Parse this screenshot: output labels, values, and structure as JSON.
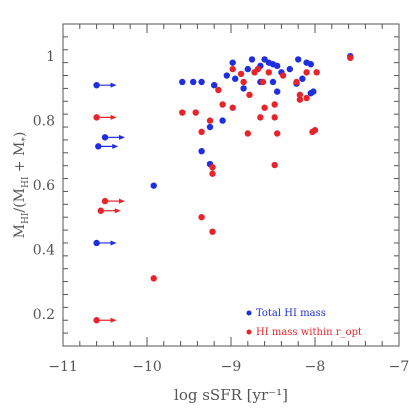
{
  "chart_data": {
    "type": "scatter",
    "title": "",
    "xlabel": "log sSFR [yr⁻¹]",
    "ylabel_main": "M",
    "ylabel_sub_hi": "HI",
    "ylabel_sub_star": "*",
    "xlim": [
      -11,
      -7
    ],
    "ylim": [
      0.1,
      1.1
    ],
    "x_ticks": [
      -11,
      -10,
      -9,
      -8,
      -7
    ],
    "x_tick_labels": [
      "−11",
      "−10",
      "−9",
      "−8",
      "−7"
    ],
    "y_ticks": [
      0.2,
      0.4,
      0.6,
      0.8,
      1.0
    ],
    "y_tick_labels": [
      "0.2",
      "0.4",
      "0.6",
      "0.8",
      "1"
    ],
    "grid": false,
    "legend_position": "bottom-right",
    "series": [
      {
        "name": "Total HI mass",
        "color": "#1f2fe0",
        "points": [
          [
            -9.58,
            0.92
          ],
          [
            -9.45,
            0.92
          ],
          [
            -9.35,
            0.92
          ],
          [
            -9.2,
            0.91
          ],
          [
            -9.05,
            0.94
          ],
          [
            -8.98,
            0.98
          ],
          [
            -8.8,
            0.96
          ],
          [
            -8.75,
            0.99
          ],
          [
            -8.65,
            0.97
          ],
          [
            -8.6,
            0.99
          ],
          [
            -8.55,
            0.98
          ],
          [
            -8.5,
            0.975
          ],
          [
            -8.45,
            0.97
          ],
          [
            -8.4,
            0.95
          ],
          [
            -8.3,
            0.96
          ],
          [
            -8.2,
            0.99
          ],
          [
            -8.1,
            0.98
          ],
          [
            -8.05,
            0.975
          ],
          [
            -7.58,
            1.0
          ],
          [
            -8.95,
            0.93
          ],
          [
            -8.85,
            0.9
          ],
          [
            -8.65,
            0.92
          ],
          [
            -8.5,
            0.92
          ],
          [
            -8.45,
            0.89
          ],
          [
            -8.22,
            0.915
          ],
          [
            -8.15,
            0.93
          ],
          [
            -8.05,
            0.885
          ],
          [
            -8.02,
            0.89
          ],
          [
            -9.1,
            0.8
          ],
          [
            -9.25,
            0.78
          ],
          [
            -9.35,
            0.705
          ],
          [
            -9.25,
            0.665
          ],
          [
            -9.92,
            0.598
          ]
        ],
        "upper_limits": [
          [
            -10.6,
            0.91
          ],
          [
            -10.5,
            0.748
          ],
          [
            -10.58,
            0.72
          ],
          [
            -10.6,
            0.42
          ]
        ]
      },
      {
        "name": "HI mass within r_opt",
        "color": "#e8242b",
        "points": [
          [
            -9.58,
            0.825
          ],
          [
            -9.42,
            0.825
          ],
          [
            -9.35,
            0.765
          ],
          [
            -9.25,
            0.8
          ],
          [
            -9.15,
            0.895
          ],
          [
            -9.1,
            0.85
          ],
          [
            -8.98,
            0.96
          ],
          [
            -8.88,
            0.945
          ],
          [
            -8.78,
            0.88
          ],
          [
            -8.72,
            0.95
          ],
          [
            -8.68,
            0.96
          ],
          [
            -8.62,
            0.92
          ],
          [
            -8.55,
            0.95
          ],
          [
            -8.48,
            0.85
          ],
          [
            -8.38,
            0.94
          ],
          [
            -8.22,
            0.92
          ],
          [
            -8.18,
            0.88
          ],
          [
            -8.1,
            0.95
          ],
          [
            -7.98,
            0.95
          ],
          [
            -8.98,
            0.84
          ],
          [
            -8.8,
            0.76
          ],
          [
            -8.65,
            0.81
          ],
          [
            -8.6,
            0.84
          ],
          [
            -8.48,
            0.81
          ],
          [
            -8.45,
            0.76
          ],
          [
            -8.18,
            0.865
          ],
          [
            -8.1,
            0.87
          ],
          [
            -8.0,
            0.77
          ],
          [
            -8.03,
            0.765
          ],
          [
            -8.85,
            0.92
          ],
          [
            -7.58,
            0.995
          ],
          [
            -9.22,
            0.655
          ],
          [
            -9.22,
            0.635
          ],
          [
            -8.48,
            0.662
          ],
          [
            -9.35,
            0.5
          ],
          [
            -9.22,
            0.455
          ],
          [
            -9.92,
            0.31
          ]
        ],
        "upper_limits": [
          [
            -10.6,
            0.81
          ],
          [
            -10.5,
            0.55
          ],
          [
            -10.55,
            0.52
          ],
          [
            -10.6,
            0.18
          ]
        ]
      }
    ]
  }
}
